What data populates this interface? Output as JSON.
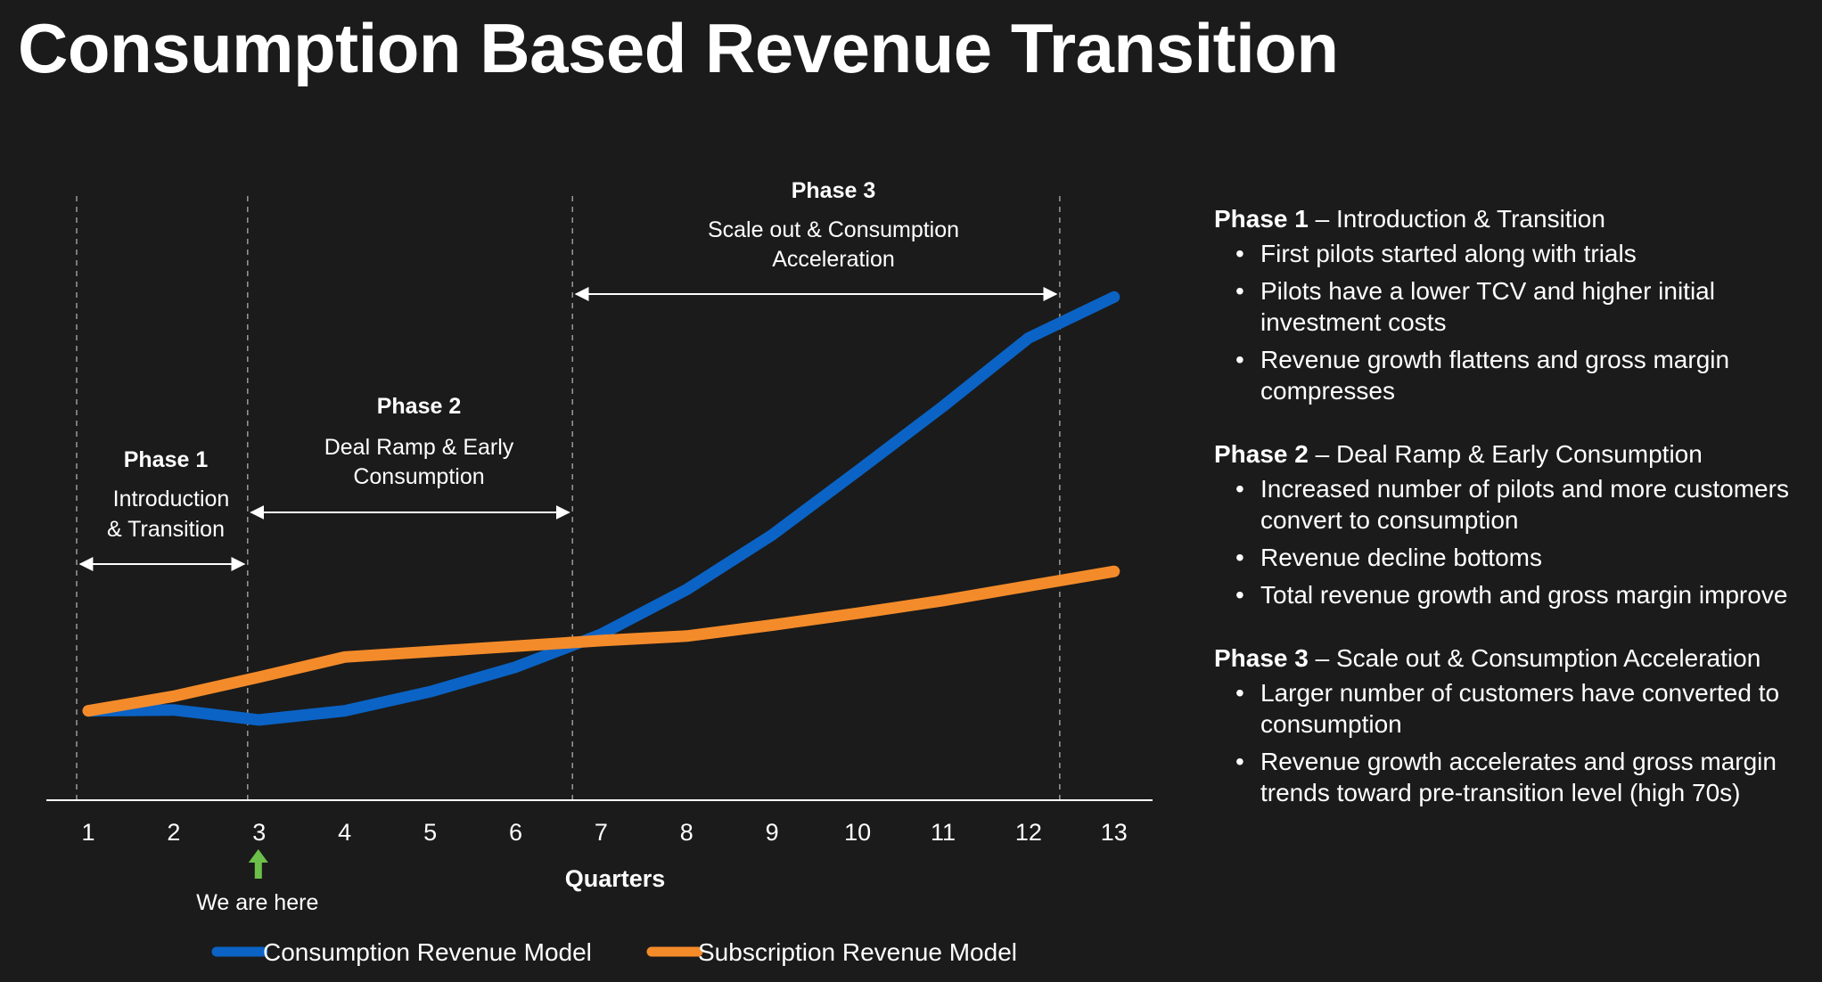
{
  "title": "Consumption Based Revenue Transition",
  "colors": {
    "consumption": "#0b63c5",
    "subscription": "#f48b2a",
    "marker_arrow": "#6cc04a",
    "background": "#1b1b1b",
    "text": "#ffffff"
  },
  "chart_data": {
    "type": "line",
    "xlabel": "Quarters",
    "ylabel": "",
    "x": [
      1,
      2,
      3,
      4,
      5,
      6,
      7,
      8,
      9,
      10,
      11,
      12,
      13
    ],
    "grid": false,
    "legend_position": "bottom",
    "series": [
      {
        "name": "Consumption Revenue Model",
        "color": "#0b63c5",
        "values": [
          10.0,
          10.1,
          9.0,
          10.0,
          12.1,
          14.8,
          18.4,
          23.3,
          29.3,
          36.3,
          43.4,
          50.9,
          55.4
        ]
      },
      {
        "name": "Subscription Revenue Model",
        "color": "#f48b2a",
        "values": [
          10.0,
          11.6,
          13.7,
          15.9,
          16.5,
          17.1,
          17.7,
          18.2,
          19.4,
          20.7,
          22.1,
          23.7,
          25.3
        ]
      }
    ],
    "ylim": [
      -3,
      62
    ],
    "annotations": [
      {
        "phase": "Phase 1",
        "lines": [
          "Introduction",
          "& Transition"
        ],
        "range": [
          1,
          3
        ]
      },
      {
        "phase": "Phase 2",
        "lines": [
          "Deal Ramp & Early",
          "Consumption"
        ],
        "range": [
          3,
          6.8
        ]
      },
      {
        "phase": "Phase 3",
        "lines": [
          "Scale out & Consumption",
          "Acceleration"
        ],
        "range": [
          6.8,
          12.5
        ]
      }
    ],
    "phase_boundaries": [
      1,
      3,
      6.8,
      12.5
    ],
    "marker": {
      "label": "We are here",
      "x": 3
    }
  },
  "side_panel": [
    {
      "phase": "Phase 1",
      "subtitle": " – Introduction & Transition",
      "bullets": [
        "First pilots started along with trials",
        "Pilots have a lower TCV and higher initial investment costs",
        "Revenue growth flattens and gross margin compresses"
      ]
    },
    {
      "phase": "Phase 2",
      "subtitle": " – Deal Ramp & Early Consumption",
      "bullets": [
        "Increased number of pilots and more customers convert to consumption",
        "Revenue decline bottoms",
        "Total revenue growth and gross margin improve"
      ]
    },
    {
      "phase": "Phase 3",
      "subtitle": " – Scale out & Consumption Acceleration",
      "bullets": [
        "Larger number of customers have converted to consumption",
        "Revenue growth accelerates and gross margin trends toward pre-transition level (high 70s)"
      ]
    }
  ]
}
